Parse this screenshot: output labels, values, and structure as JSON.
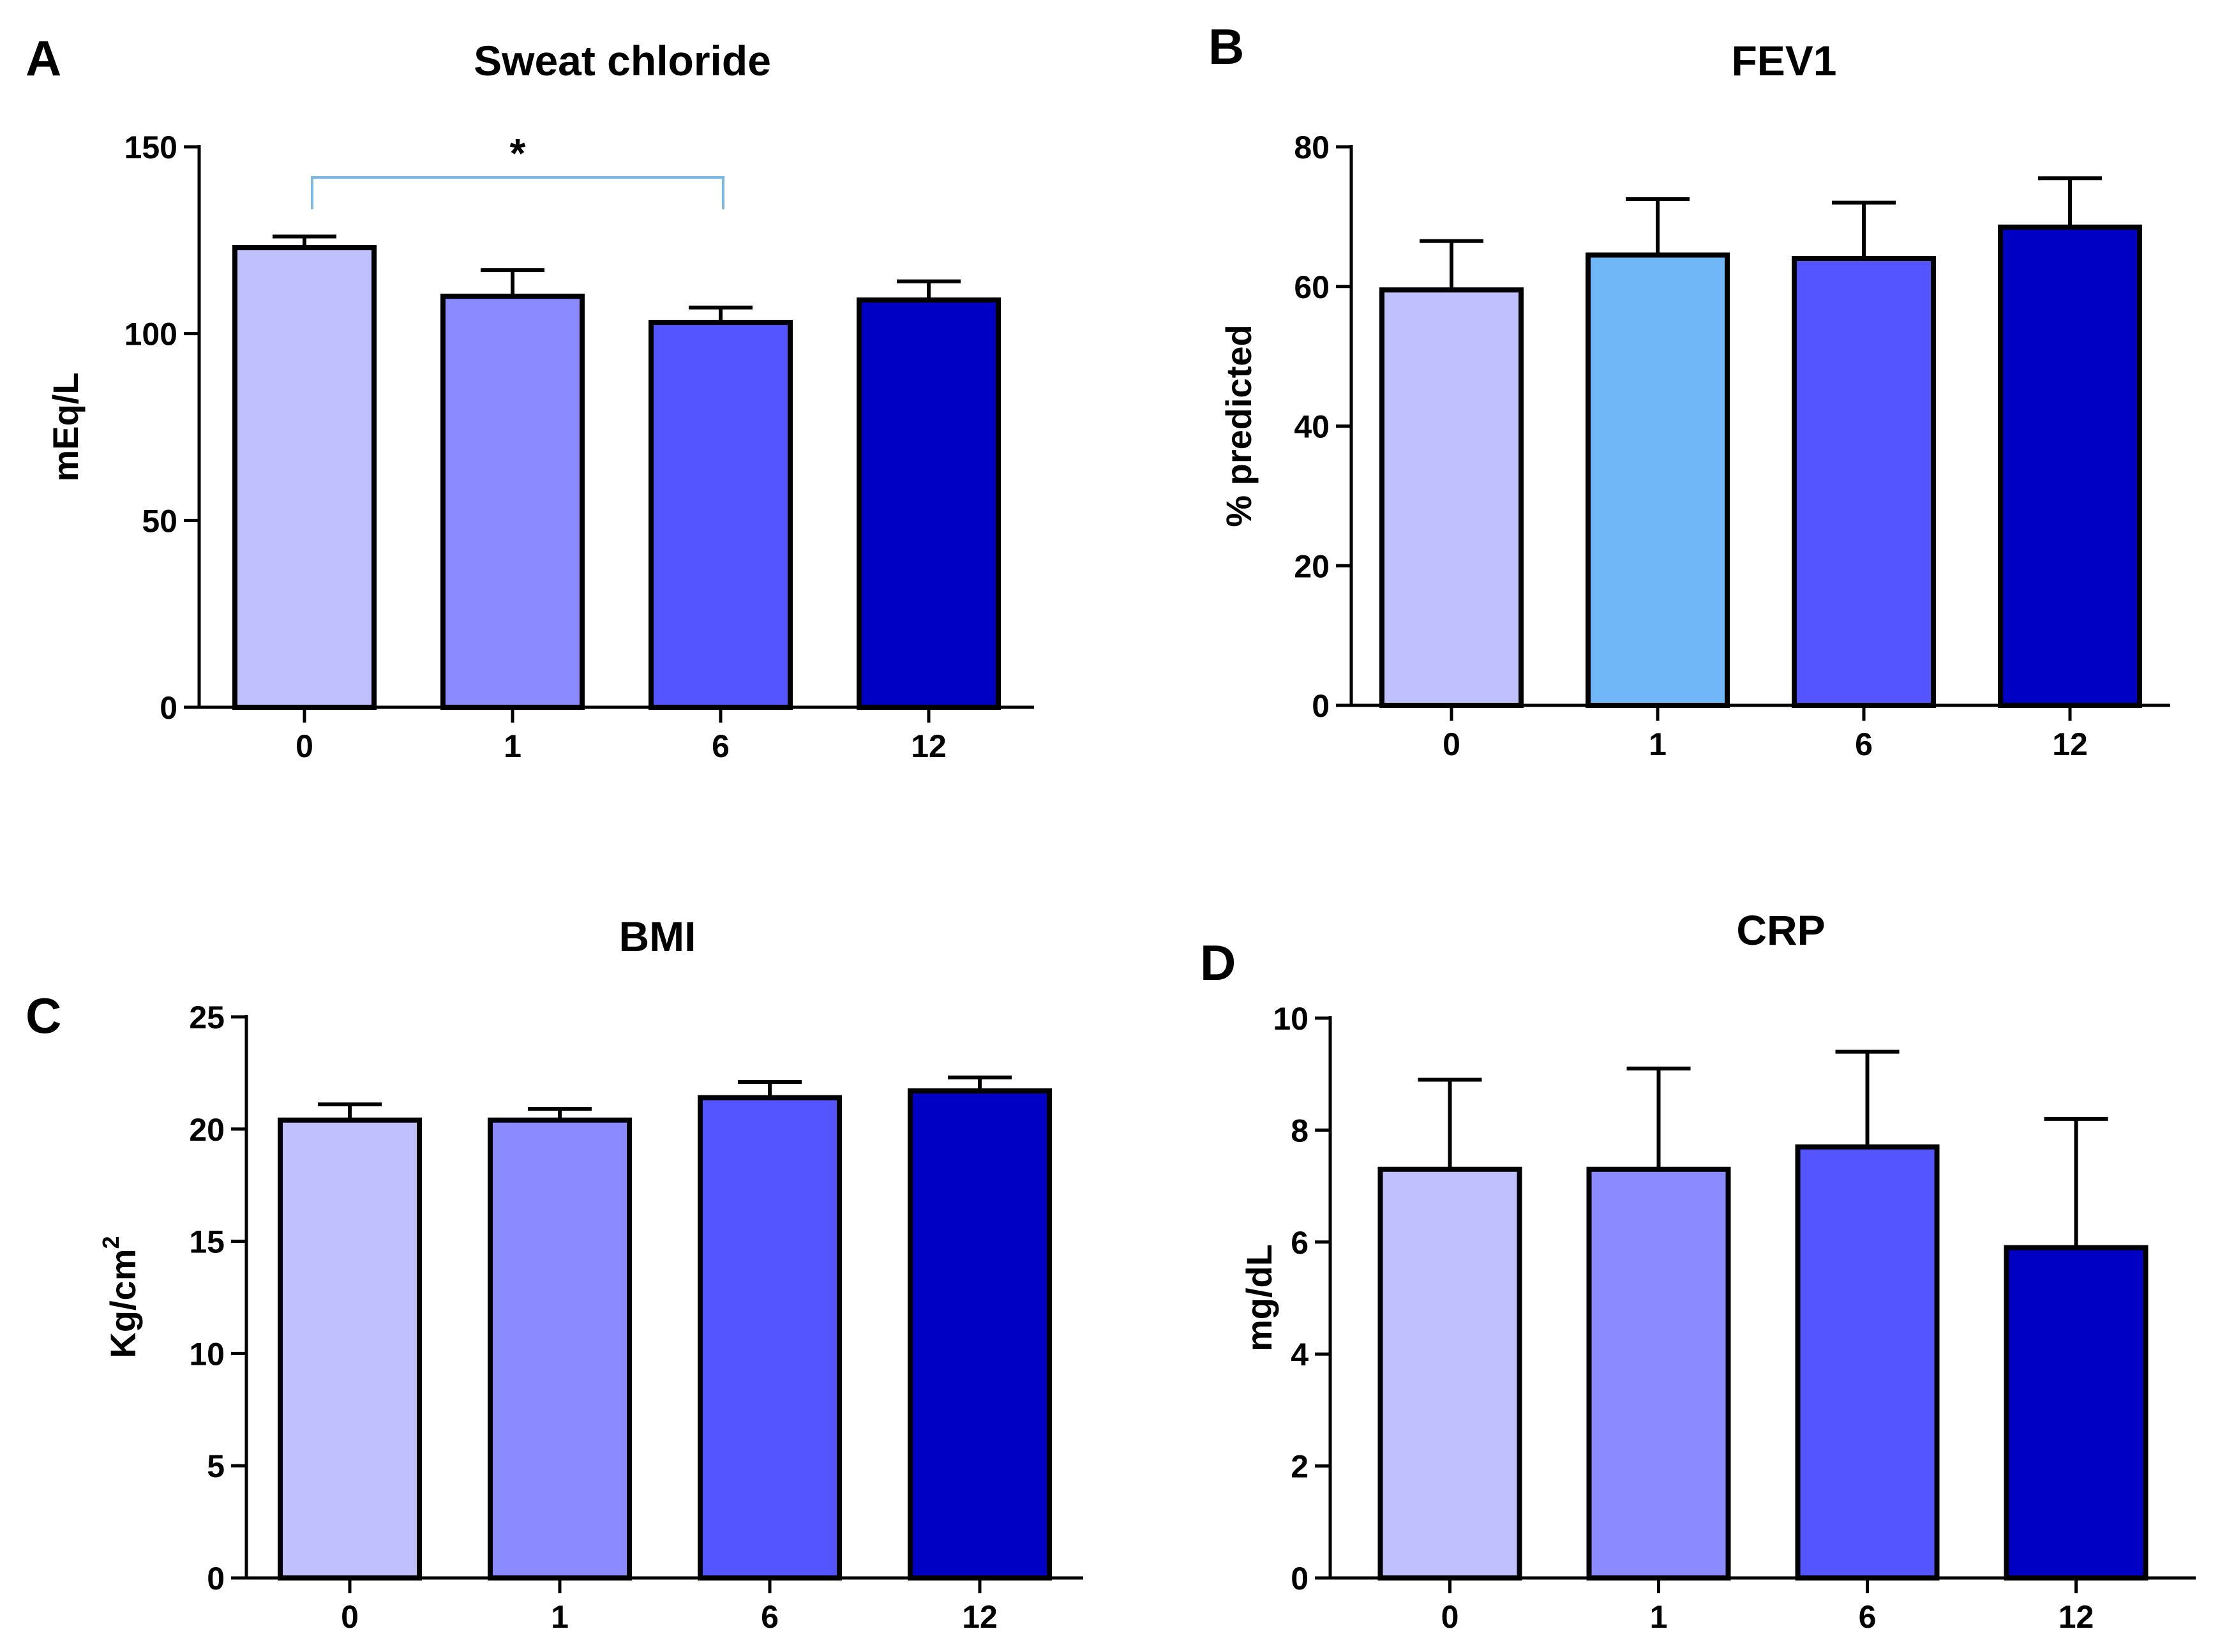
{
  "chart_data": [
    {
      "type": "bar",
      "panel": "A",
      "title": "Sweat chloride",
      "xlabel": "",
      "ylabel": "mEq/L",
      "ylabel_sup": "",
      "ylim": [
        0,
        150
      ],
      "yticks": [
        0,
        50,
        100,
        150
      ],
      "categories": [
        "0",
        "1",
        "6",
        "12"
      ],
      "values": [
        123,
        110,
        103,
        109
      ],
      "errors": [
        3,
        7,
        4,
        5
      ],
      "colors": [
        "#c0c0ff",
        "#8b8bff",
        "#5555ff",
        "#0000c4"
      ],
      "significance": {
        "from": 0,
        "to": 2,
        "label": "*",
        "color": "#79b8e8"
      }
    },
    {
      "type": "bar",
      "panel": "B",
      "title": "FEV1",
      "xlabel": "",
      "ylabel": "% predicted",
      "ylabel_sup": "",
      "ylim": [
        0,
        80
      ],
      "yticks": [
        0,
        20,
        40,
        60,
        80
      ],
      "categories": [
        "0",
        "1",
        "6",
        "12"
      ],
      "values": [
        59.5,
        64.5,
        64,
        68.5
      ],
      "errors": [
        7,
        8,
        8,
        7
      ],
      "colors": [
        "#c0c0ff",
        "#6fb7f7",
        "#5555ff",
        "#0000c4"
      ]
    },
    {
      "type": "bar",
      "panel": "C",
      "title": "BMI",
      "xlabel": "",
      "ylabel": "Kg/cm",
      "ylabel_sup": "2",
      "ylim": [
        0,
        25
      ],
      "yticks": [
        0,
        5,
        10,
        15,
        20,
        25
      ],
      "categories": [
        "0",
        "1",
        "6",
        "12"
      ],
      "values": [
        20.4,
        20.4,
        21.4,
        21.7
      ],
      "errors": [
        0.7,
        0.5,
        0.7,
        0.6
      ],
      "colors": [
        "#c0c0ff",
        "#8b8bff",
        "#5555ff",
        "#0000c4"
      ]
    },
    {
      "type": "bar",
      "panel": "D",
      "title": "CRP",
      "xlabel": "",
      "ylabel": "mg/dL",
      "ylabel_sup": "",
      "ylim": [
        0,
        10
      ],
      "yticks": [
        0,
        2,
        4,
        6,
        8,
        10
      ],
      "categories": [
        "0",
        "1",
        "6",
        "12"
      ],
      "values": [
        7.3,
        7.3,
        7.7,
        5.9
      ],
      "errors": [
        1.6,
        1.8,
        1.7,
        2.3
      ],
      "colors": [
        "#c0c0ff",
        "#8b8bff",
        "#5555ff",
        "#0000c4"
      ]
    }
  ]
}
